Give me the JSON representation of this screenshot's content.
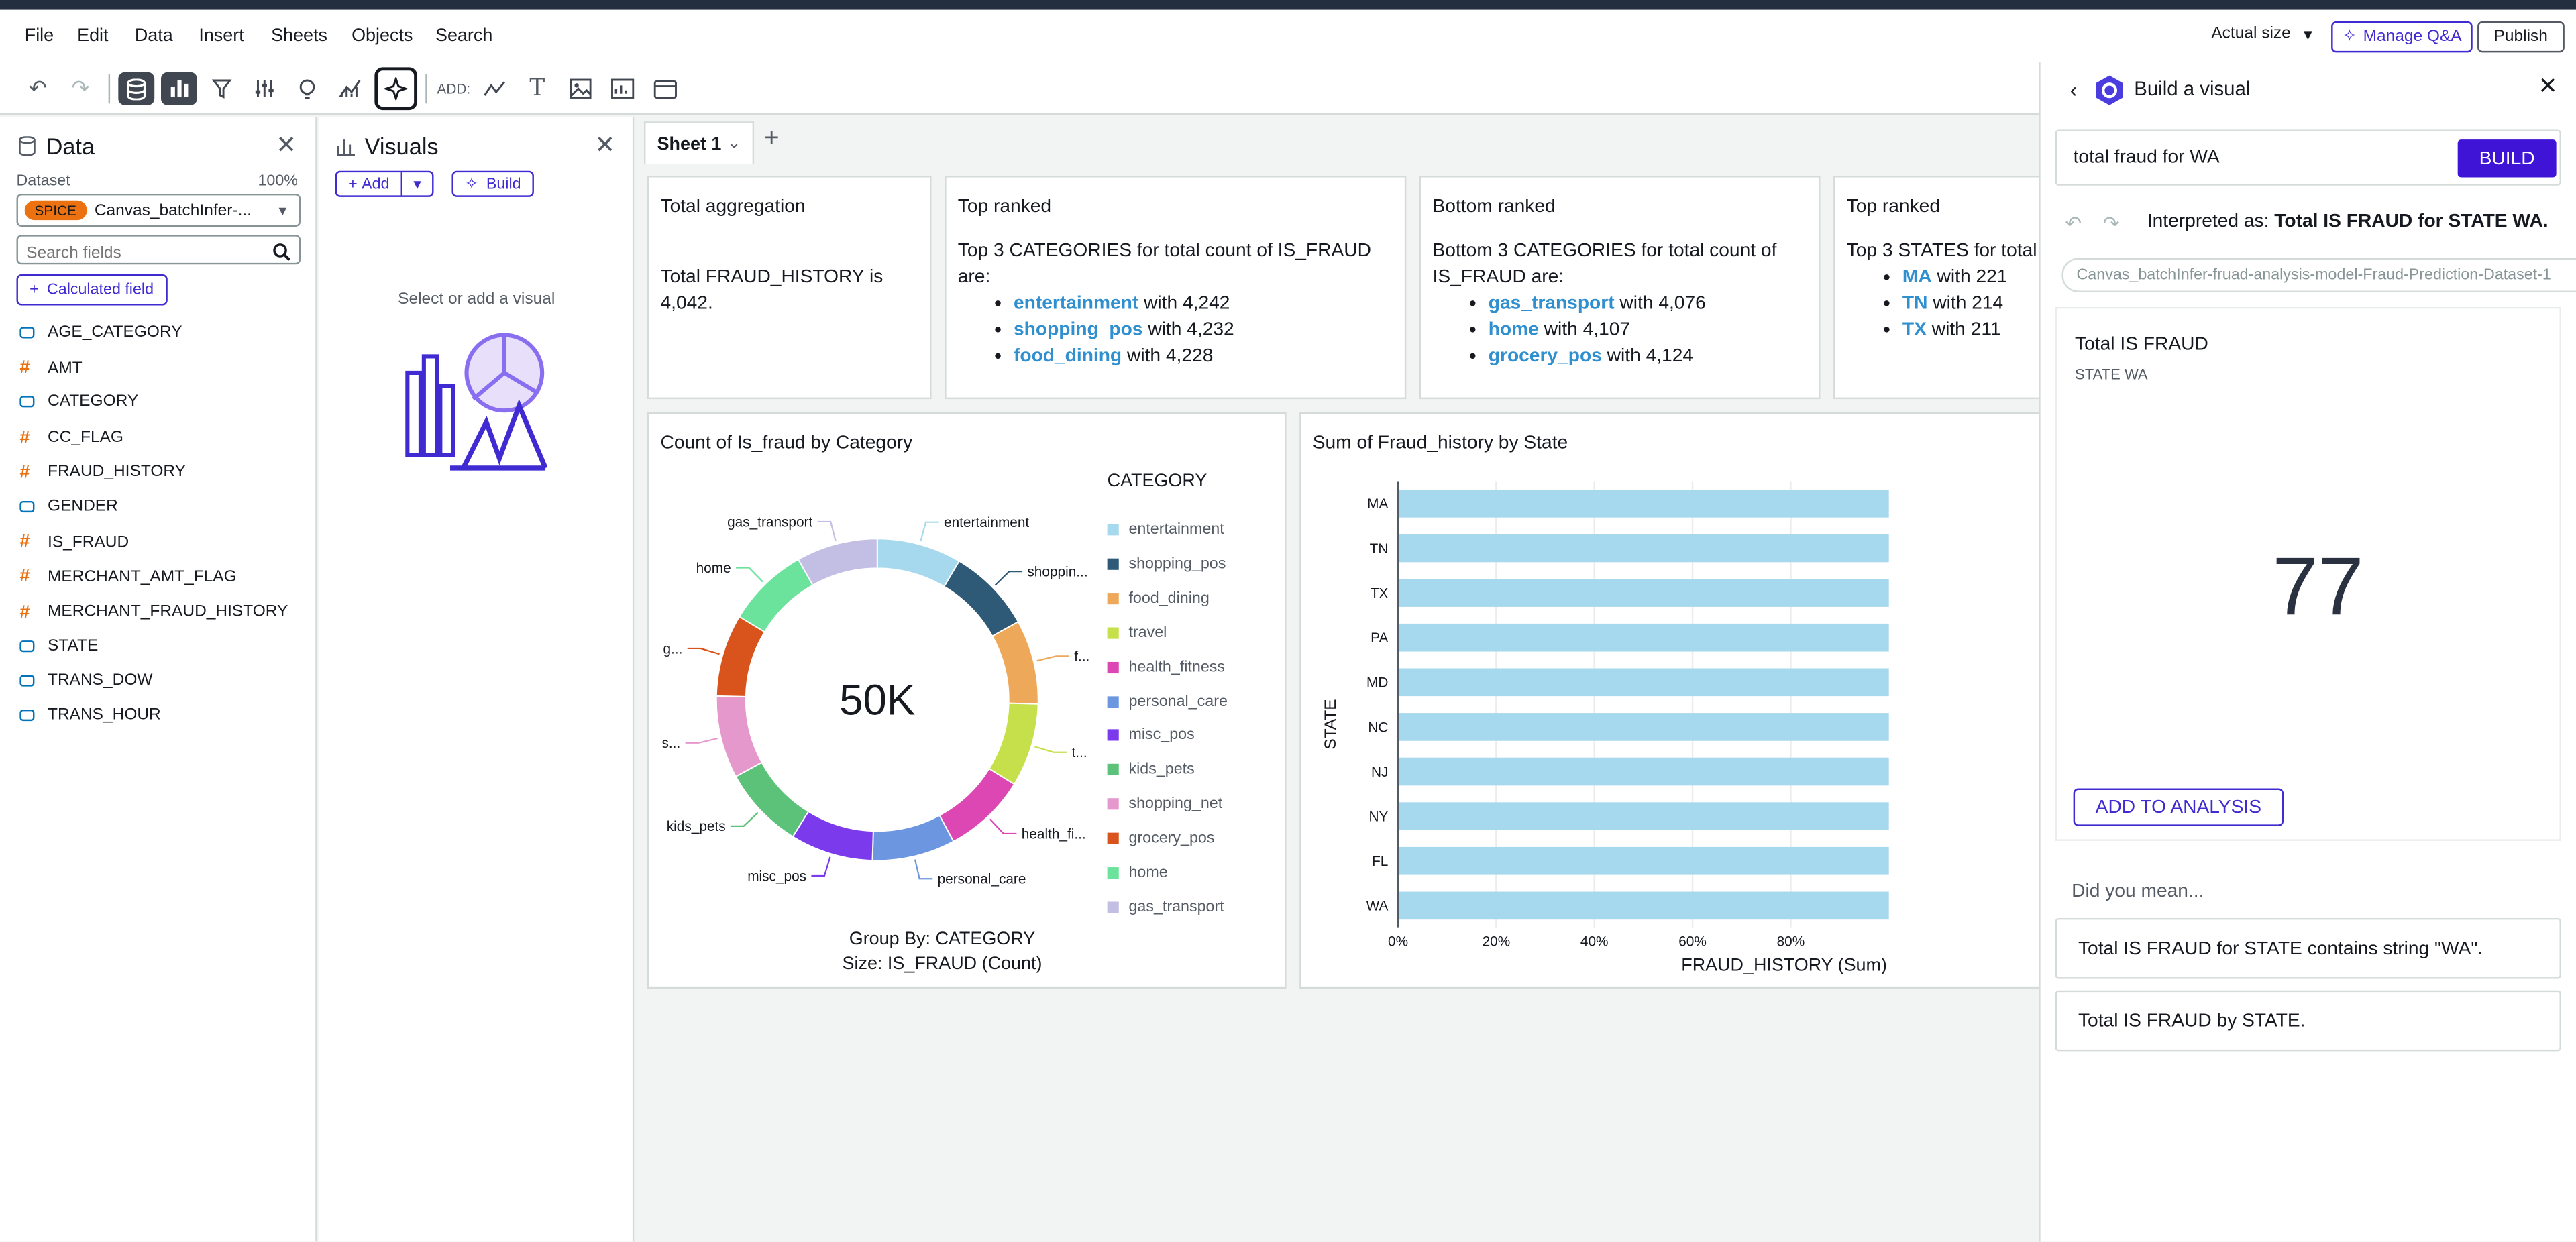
{
  "menu": [
    "File",
    "Edit",
    "Data",
    "Insert",
    "Sheets",
    "Objects",
    "Search"
  ],
  "topright": {
    "size_label": "Actual size",
    "manage_label": "Manage Q&A",
    "publish_label": "Publish"
  },
  "toolbar": {
    "add_label": "ADD:"
  },
  "data_panel": {
    "title": "Data",
    "dataset_label": "Dataset",
    "spice_pct": "100%",
    "spice_badge": "SPICE",
    "dataset_name": "Canvas_batchInfer-...",
    "search_placeholder": "Search fields",
    "calc_field_label": "Calculated field",
    "fields": [
      {
        "name": "AGE_CATEGORY",
        "type": "dim"
      },
      {
        "name": "AMT",
        "type": "meas"
      },
      {
        "name": "CATEGORY",
        "type": "dim"
      },
      {
        "name": "CC_FLAG",
        "type": "meas"
      },
      {
        "name": "FRAUD_HISTORY",
        "type": "meas"
      },
      {
        "name": "GENDER",
        "type": "dim"
      },
      {
        "name": "IS_FRAUD",
        "type": "meas"
      },
      {
        "name": "MERCHANT_AMT_FLAG",
        "type": "meas"
      },
      {
        "name": "MERCHANT_FRAUD_HISTORY",
        "type": "meas"
      },
      {
        "name": "STATE",
        "type": "dim"
      },
      {
        "name": "TRANS_DOW",
        "type": "dim"
      },
      {
        "name": "TRANS_HOUR",
        "type": "dim"
      }
    ]
  },
  "visuals_panel": {
    "title": "Visuals",
    "add_label": "Add",
    "build_label": "Build",
    "empty_text": "Select or add a visual"
  },
  "sheet": {
    "tab_label": "Sheet 1"
  },
  "insights": [
    {
      "title": "Total aggregation",
      "text": "Total FRAUD_HISTORY is 4,042.",
      "items": []
    },
    {
      "title": "Top ranked",
      "text": "Top 3 CATEGORIES for total count of IS_FRAUD are:",
      "items": [
        {
          "k": "entertainment",
          "v": " with 4,242"
        },
        {
          "k": "shopping_pos",
          "v": " with 4,232"
        },
        {
          "k": "food_dining",
          "v": " with 4,228"
        }
      ]
    },
    {
      "title": "Bottom ranked",
      "text": "Bottom 3 CATEGORIES for total count of IS_FRAUD are:",
      "items": [
        {
          "k": "gas_transport",
          "v": " with 4,076"
        },
        {
          "k": "home",
          "v": " with 4,107"
        },
        {
          "k": "grocery_pos",
          "v": " with 4,124"
        }
      ]
    },
    {
      "title": "Top ranked",
      "text": "Top 3 STATES for total",
      "items": [
        {
          "k": "MA",
          "v": " with 221"
        },
        {
          "k": "TN",
          "v": " with 214"
        },
        {
          "k": "TX",
          "v": " with 211"
        }
      ]
    }
  ],
  "donut": {
    "title": "Count of Is_fraud by Category",
    "center": "50K",
    "legend_title": "CATEGORY",
    "footer1": "Group By: CATEGORY",
    "footer2": "Size: IS_FRAUD (Count)",
    "outer_labels": [
      "entertainment",
      "shoppin...",
      "f...",
      "t...",
      "health_fi...",
      "personal_care",
      "misc_pos",
      "kids_pets",
      "s...",
      "g...",
      "home",
      "gas_transport"
    ]
  },
  "bar": {
    "title": "Sum of Fraud_history by State",
    "ylabel": "STATE",
    "xlabel": "FRAUD_HISTORY (Sum)",
    "xticks": [
      "0%",
      "20%",
      "40%",
      "60%",
      "80%"
    ]
  },
  "chart_data": [
    {
      "type": "pie",
      "title": "Count of Is_fraud by Category",
      "categories": [
        "entertainment",
        "shopping_pos",
        "food_dining",
        "travel",
        "health_fitness",
        "personal_care",
        "misc_pos",
        "kids_pets",
        "shopping_net",
        "grocery_pos",
        "home",
        "gas_transport"
      ],
      "values": [
        4242,
        4232,
        4228,
        4180,
        4170,
        4160,
        4150,
        4140,
        4135,
        4124,
        4107,
        4076
      ],
      "colors": [
        "#a6d8ee",
        "#2e5a78",
        "#eea85a",
        "#c6e04c",
        "#dd47b4",
        "#6c96e0",
        "#7c3aed",
        "#5cc27a",
        "#e598cb",
        "#d8541c",
        "#6be39c",
        "#c3bee4"
      ]
    },
    {
      "type": "bar",
      "title": "Sum of Fraud_history by State",
      "ylabel": "STATE",
      "xlabel": "FRAUD_HISTORY (Sum)",
      "categories": [
        "MA",
        "TN",
        "TX",
        "PA",
        "MD",
        "NC",
        "NJ",
        "NY",
        "FL",
        "WA"
      ],
      "values": [
        1,
        1,
        1,
        1,
        1,
        1,
        1,
        1,
        1,
        1
      ],
      "xlim": [
        0,
        1
      ]
    }
  ],
  "qa": {
    "title": "Build a visual",
    "query": "total fraud for WA",
    "build_label": "BUILD",
    "interp_prefix": "Interpreted as: ",
    "interp_bold": "Total IS FRAUD for STATE WA.",
    "dataset_chip": "Canvas_batchInfer-fruad-analysis-model-Fraud-Prediction-Dataset-1",
    "kpi_title": "Total IS FRAUD",
    "kpi_sub": "STATE WA",
    "kpi_value": "77",
    "add_to_analysis": "ADD TO ANALYSIS",
    "did_you_mean": "Did you mean...",
    "suggestions": [
      "Total IS FRAUD for STATE contains string \"WA\".",
      "Total IS FRAUD by STATE."
    ]
  }
}
